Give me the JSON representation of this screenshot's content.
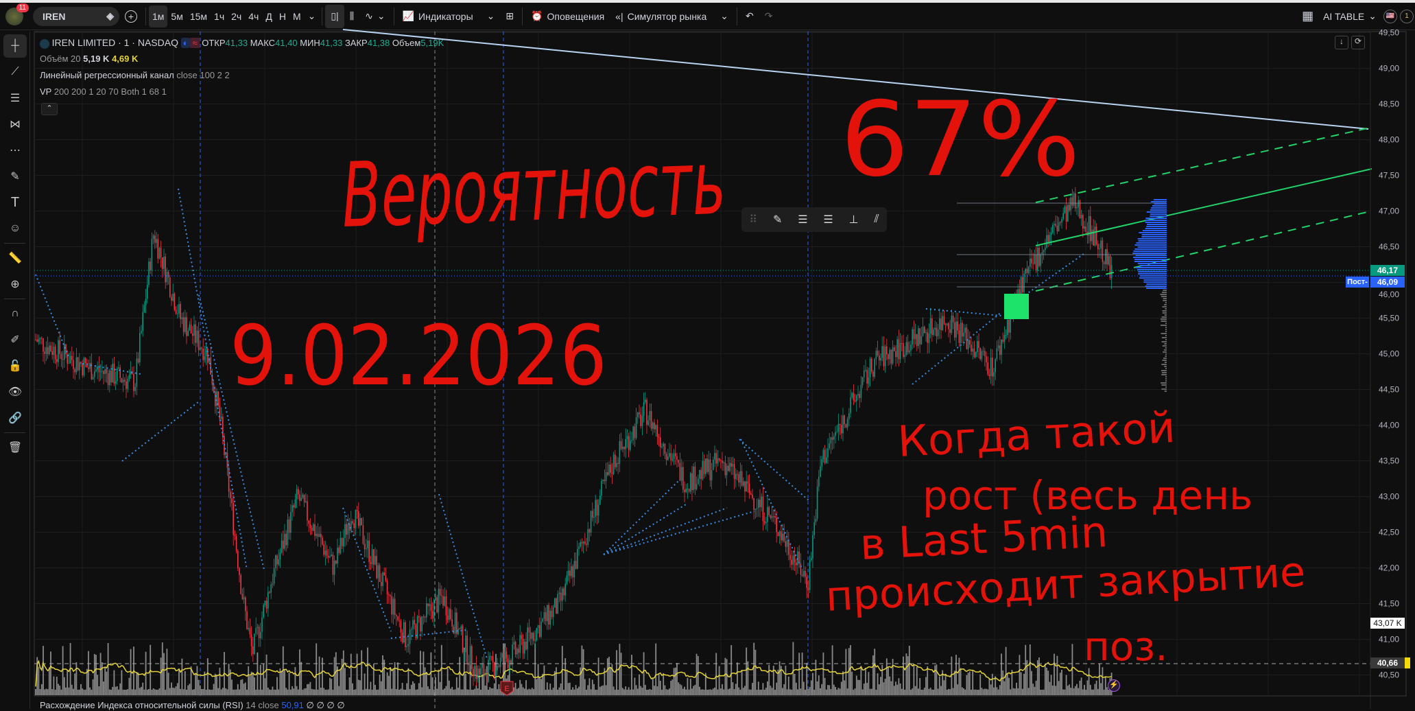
{
  "toolbar": {
    "notifications": "11",
    "symbol": "IREN",
    "timeframes": [
      "1м",
      "5м",
      "15м",
      "1ч",
      "2ч",
      "4ч",
      "Д",
      "Н",
      "М"
    ],
    "active_timeframe": "1м",
    "indicators": "Индикаторы",
    "alerts": "Оповещения",
    "simulator": "Симулятор рынка",
    "layout": "AI TABLE",
    "right_badge": "1"
  },
  "legend": {
    "title": "IREN LIMITED · 1 · NASDAQ",
    "open_label": "ОТКР",
    "open": "41,33",
    "high_label": "МАКС",
    "high": "41,40",
    "low_label": "МИН",
    "low": "41,33",
    "close_label": "ЗАКР",
    "close": "41,38",
    "vol_label": "Объем",
    "vol": "5,19K",
    "volume_ind": "Объём 20",
    "volume_val": "5,19 K",
    "volume_ma": "4,69 K",
    "regression": "Линейный регрессионный канал",
    "regression_params": "close 100 2 2",
    "vp": "VP",
    "vp_params": "200 200 1 20 70 Both 1 68 1"
  },
  "price_axis": {
    "ticks": [
      "49,50",
      "49,00",
      "48,50",
      "48,00",
      "47,50",
      "47,00",
      "46,50",
      "46,00",
      "45,50",
      "45,00",
      "44,50",
      "44,00",
      "43,50",
      "43,00",
      "42,50",
      "42,00",
      "41,50",
      "41,00",
      "40,50"
    ],
    "last_price": "46,17",
    "last_color": "#089981",
    "post_label": "Пост-",
    "post_price": "46,09",
    "post_color": "#2962ff",
    "volume_label": "43,07 K",
    "crosshair_price": "40,66"
  },
  "annotations": {
    "probability_word": "Вероятность",
    "probability_value": "67%",
    "date": "9.02.2026",
    "note_lines": [
      "Когда такой",
      "рост (весь день",
      "в Last 5min",
      "происходит  закрытие",
      "поз."
    ],
    "color": "#e3120b"
  },
  "events": {
    "earnings": "E"
  },
  "rsi": {
    "label": "Расхождение Индекса относительной силы (RSI)",
    "params": "14 close",
    "value": "50,91",
    "extra": "∅ ∅ ∅ ∅"
  },
  "colors": {
    "up": "#089981",
    "down": "#f23645",
    "volume": "#8a8a8a",
    "volume_ma": "#e5d33a",
    "channel": "#22d369",
    "trendline": "#b9d3f2",
    "profile": "#2962ff"
  }
}
